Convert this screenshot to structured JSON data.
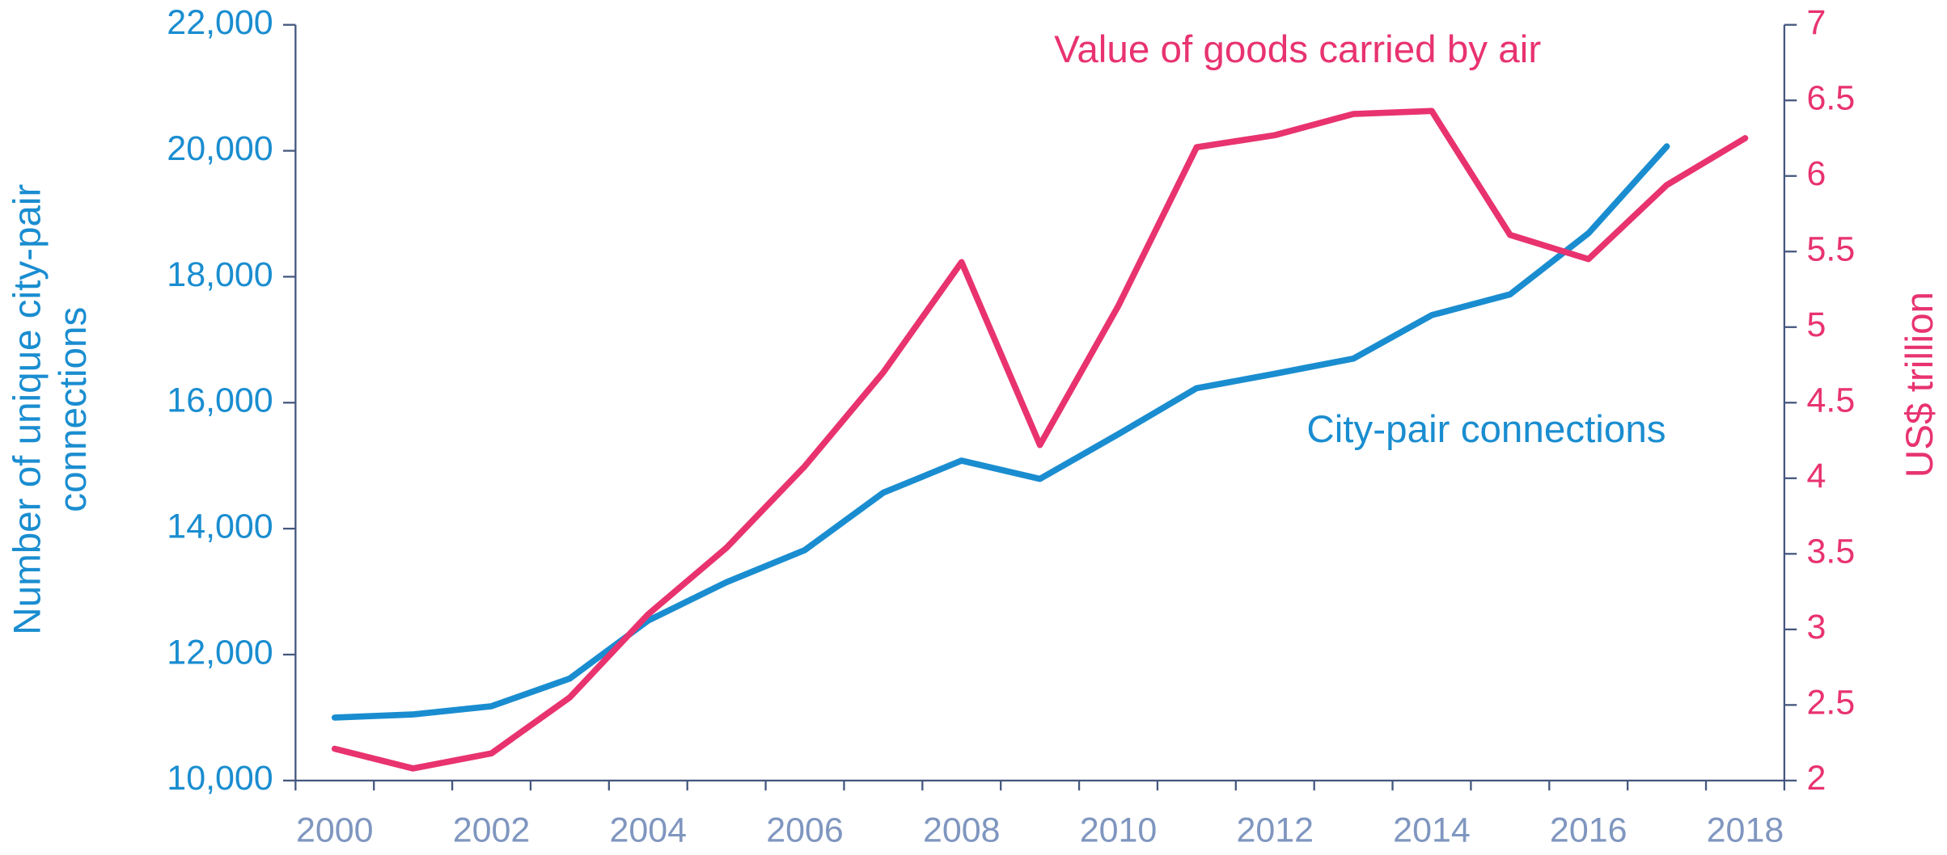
{
  "chart_data": {
    "type": "line",
    "categories": [
      "2000",
      null,
      "2002",
      null,
      "2004",
      null,
      "2006",
      null,
      "2008",
      null,
      "2010",
      null,
      "2012",
      null,
      "2014",
      null,
      "2016",
      null,
      "2018"
    ],
    "ylabel": [
      "Number of unique city-pair",
      "connections"
    ],
    "y2label": "US$ trillion",
    "annotations": [
      {
        "text": "Value of goods carried by air",
        "series": 1
      },
      {
        "text": "City-pair connections",
        "series": 0
      }
    ],
    "series": [
      {
        "name": "City-pair connections",
        "color": "#1a8dd0",
        "axis": "y",
        "values": [
          11000,
          11050,
          11180,
          11620,
          12540,
          13150,
          13660,
          14570,
          15080,
          14790,
          15500,
          16230,
          16460,
          16700,
          17390,
          17720,
          18690,
          20070,
          null
        ]
      },
      {
        "name": "Value of goods carried by air",
        "color": "#e8336f",
        "axis": "y2",
        "values": [
          2.21,
          2.08,
          2.18,
          2.55,
          3.1,
          3.54,
          4.08,
          4.7,
          5.43,
          4.22,
          5.14,
          6.19,
          6.27,
          6.41,
          6.43,
          5.61,
          5.45,
          5.94,
          6.25
        ]
      }
    ],
    "ylim": [
      10000,
      22000
    ],
    "yticks": [
      {
        "value": 10000,
        "label": "10,000"
      },
      {
        "value": 12000,
        "label": "12,000"
      },
      {
        "value": 14000,
        "label": "14,000"
      },
      {
        "value": 16000,
        "label": "16,000"
      },
      {
        "value": 18000,
        "label": "18,000"
      },
      {
        "value": 20000,
        "label": "20,000"
      },
      {
        "value": 22000,
        "label": "22,000"
      }
    ],
    "y2lim": [
      2,
      7
    ],
    "y2ticks": [
      2,
      2.5,
      3,
      3.5,
      4,
      4.5,
      5,
      5.5,
      6,
      6.5,
      7
    ],
    "grid": false
  }
}
